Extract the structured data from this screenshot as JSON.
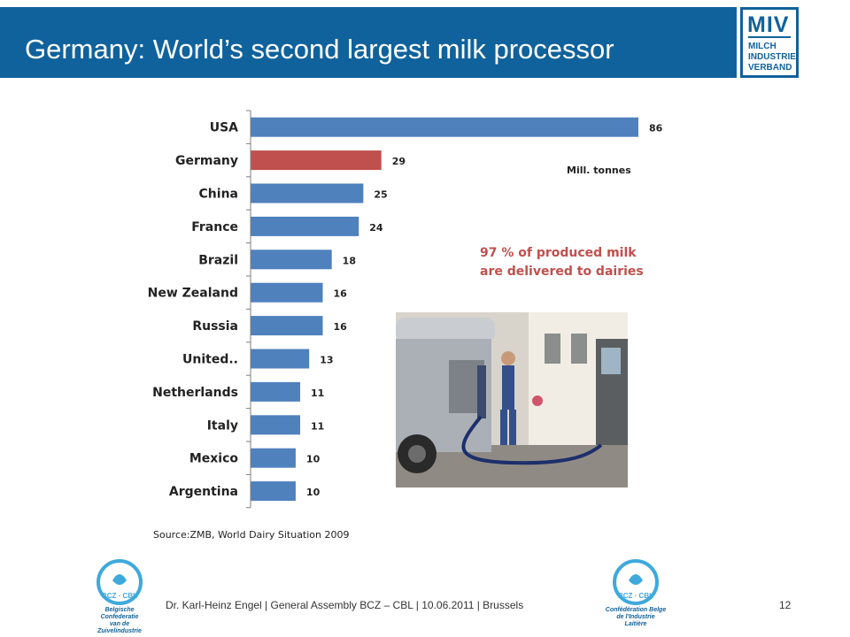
{
  "slide": {
    "title": "Germany: World’s second largest milk processor",
    "unit_label": "Mill. tonnes",
    "note_line1": "97 % of produced milk",
    "note_line2": "are delivered to dairies",
    "source": "Source:ZMB, World Dairy Situation 2009",
    "footer": "Dr. Karl-Heinz Engel | General Assembly BCZ – CBL | 10.06.2011 | Brussels",
    "page_number": "12"
  },
  "logo": {
    "name": "MIV",
    "line1": "MILCH",
    "line2": "INDUSTRIE",
    "line3": "VERBAND"
  },
  "left_logo": {
    "badge": "BCZ · CBL",
    "caption_line1": "Belgische Confederatie",
    "caption_line2": "van de Zuivelindustrie"
  },
  "right_logo": {
    "badge": "BCZ · CBL",
    "caption_line1": "Confédération Belge",
    "caption_line2": "de l'Industrie Laitière"
  },
  "colors": {
    "header": "#10629c",
    "bar": "#4f81bd",
    "highlight": "#c0504d"
  },
  "chart_data": {
    "type": "bar",
    "orientation": "horizontal",
    "categories": [
      "USA",
      "Germany",
      "China",
      "France",
      "Brazil",
      "New Zealand",
      "Russia",
      "United..",
      "Netherlands",
      "Italy",
      "Mexico",
      "Argentina"
    ],
    "values": [
      86,
      29,
      25,
      24,
      18,
      16,
      16,
      13,
      11,
      11,
      10,
      10
    ],
    "highlight_category": "Germany",
    "xlim": [
      0,
      86
    ],
    "grid": false,
    "legend": "none"
  }
}
